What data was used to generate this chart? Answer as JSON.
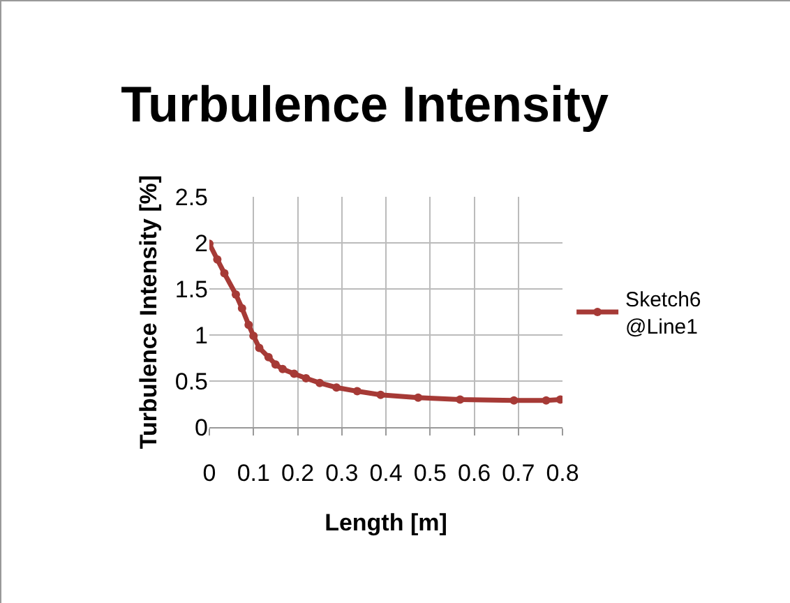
{
  "chart_data": {
    "type": "line",
    "title": "Turbulence Intensity",
    "xlabel": "Length [m]",
    "ylabel": "Turbulence Intensity [%]",
    "x": [
      0,
      0.018,
      0.034,
      0.06,
      0.074,
      0.089,
      0.1,
      0.113,
      0.134,
      0.15,
      0.166,
      0.192,
      0.219,
      0.25,
      0.288,
      0.335,
      0.388,
      0.473,
      0.568,
      0.69,
      0.763,
      0.795
    ],
    "series": [
      {
        "name": "Sketch6 @Line1",
        "color": "#a63a36",
        "values": [
          1.99,
          1.82,
          1.67,
          1.44,
          1.29,
          1.11,
          0.99,
          0.86,
          0.76,
          0.68,
          0.63,
          0.58,
          0.53,
          0.48,
          0.43,
          0.39,
          0.35,
          0.32,
          0.3,
          0.29,
          0.29,
          0.3
        ]
      }
    ],
    "xlim": [
      0,
      0.8
    ],
    "xticks": [
      0,
      0.1,
      0.2,
      0.3,
      0.4,
      0.5,
      0.6,
      0.7,
      0.8
    ],
    "ylim": [
      0,
      2.5
    ],
    "yticks": [
      0,
      0.5,
      1,
      1.5,
      2,
      2.5
    ],
    "grid": true,
    "legend": "right",
    "marker": "circle",
    "line_style": "solid"
  }
}
